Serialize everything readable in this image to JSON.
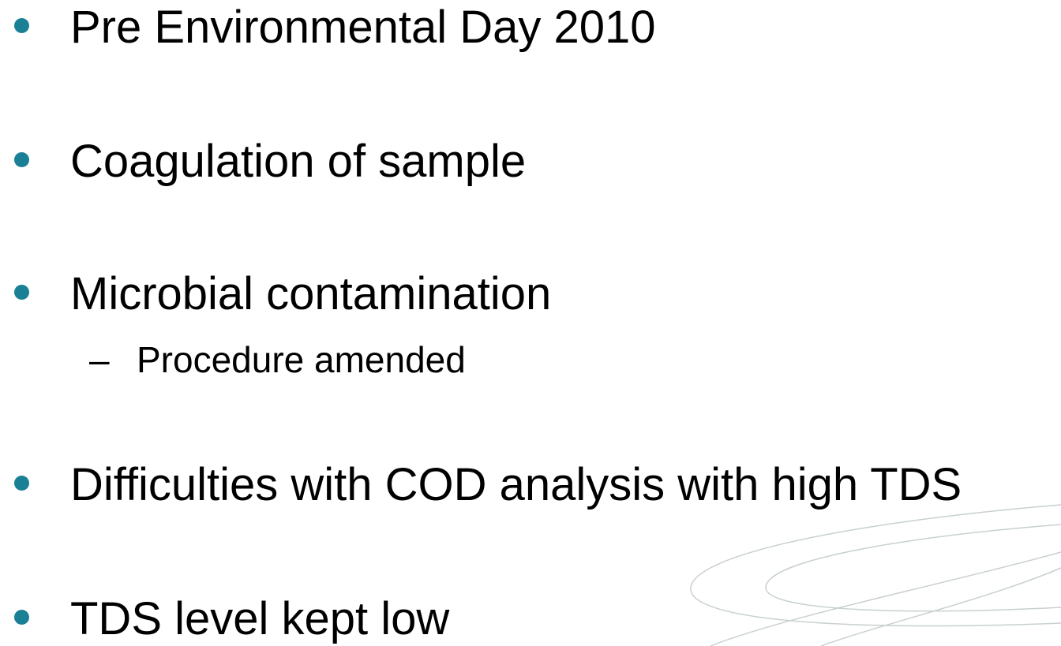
{
  "bullets": [
    {
      "text": "Pre Environmental Day 2010",
      "sub": []
    },
    {
      "text": "Coagulation of sample",
      "sub": []
    },
    {
      "text": "Microbial contamination",
      "sub": [
        "Procedure amended"
      ]
    },
    {
      "text": "Difficulties with COD analysis with high TDS",
      "sub": []
    },
    {
      "text": "TDS level kept low",
      "sub": []
    }
  ]
}
